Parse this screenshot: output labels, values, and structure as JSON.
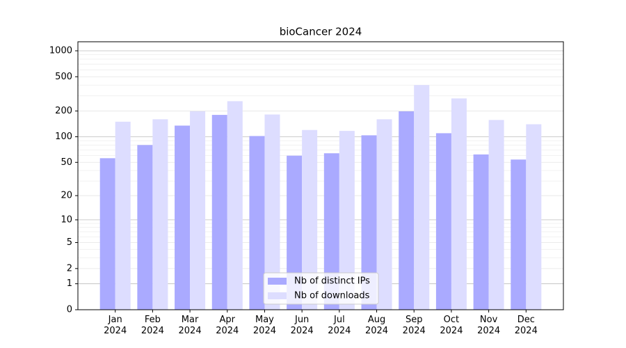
{
  "chart_data": {
    "type": "bar",
    "title": "bioCancer 2024",
    "categories": [
      "Jan\n2024",
      "Feb\n2024",
      "Mar\n2024",
      "Apr\n2024",
      "May\n2024",
      "Jun\n2024",
      "Jul\n2024",
      "Aug\n2024",
      "Sep\n2024",
      "Oct\n2024",
      "Nov\n2024",
      "Dec\n2024"
    ],
    "series": [
      {
        "name": "Nb of distinct IPs",
        "color": "#aaaaff",
        "values": [
          56,
          80,
          135,
          180,
          102,
          60,
          64,
          104,
          198,
          110,
          62,
          54
        ]
      },
      {
        "name": "Nb of downloads",
        "color": "#ddddff",
        "values": [
          150,
          160,
          198,
          260,
          182,
          120,
          117,
          160,
          400,
          280,
          157,
          140
        ]
      }
    ],
    "scale": "log1p",
    "ylim": [
      0,
      1273
    ],
    "yticks": [
      0,
      1,
      2,
      5,
      10,
      20,
      50,
      100,
      200,
      500,
      1000
    ],
    "grid": true,
    "legend": "lower center"
  }
}
